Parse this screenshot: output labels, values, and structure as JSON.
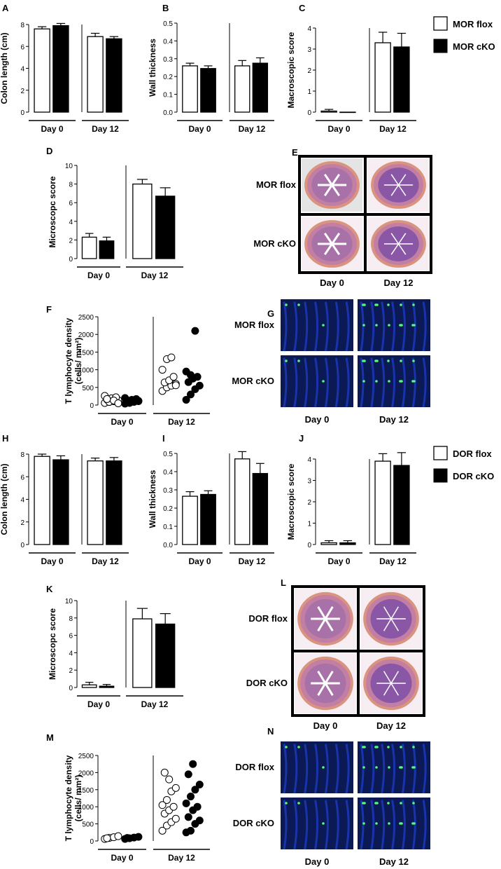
{
  "legend_mor": {
    "flox": "MOR flox",
    "cko": "MOR cKO"
  },
  "legend_dor": {
    "flox": "DOR flox",
    "cko": "DOR cKO"
  },
  "histo_E": {
    "letter": "E",
    "rows": [
      "MOR flox",
      "MOR cKO"
    ],
    "cols": [
      "Day 0",
      "Day 12"
    ]
  },
  "fluor_G": {
    "letter": "G",
    "rows": [
      "MOR flox",
      "MOR cKO"
    ],
    "cols": [
      "Day 0",
      "Day 12"
    ]
  },
  "histo_L": {
    "letter": "L",
    "rows": [
      "DOR flox",
      "DOR cKO"
    ],
    "cols": [
      "Day 0",
      "Day 12"
    ]
  },
  "fluor_N": {
    "letter": "N",
    "rows": [
      "DOR flox",
      "DOR cKO"
    ],
    "cols": [
      "Day 0",
      "Day 12"
    ]
  },
  "colors": {
    "flox": "#ffffff",
    "cko": "#000000",
    "stroke": "#000000"
  },
  "chart_data": [
    {
      "panel": "A",
      "type": "bar",
      "ylabel": "Colon length (cm)",
      "ylim": [
        0,
        8
      ],
      "yticks": [
        0,
        2,
        4,
        6,
        8
      ],
      "groups": [
        "Day 0",
        "Day 12"
      ],
      "series": [
        {
          "name": "MOR flox",
          "values": [
            7.6,
            6.9
          ],
          "errors": [
            0.2,
            0.3
          ]
        },
        {
          "name": "MOR cKO",
          "values": [
            7.9,
            6.7
          ],
          "errors": [
            0.2,
            0.2
          ]
        }
      ]
    },
    {
      "panel": "B",
      "type": "bar",
      "ylabel": "Wall thickness",
      "ylim": [
        0,
        0.5
      ],
      "yticks": [
        "0.0",
        "0.1",
        "0.2",
        "0.3",
        "0.4",
        "0.5"
      ],
      "groups": [
        "Day 0",
        "Day 12"
      ],
      "series": [
        {
          "name": "MOR flox",
          "values": [
            0.26,
            0.26
          ],
          "errors": [
            0.015,
            0.03
          ]
        },
        {
          "name": "MOR cKO",
          "values": [
            0.245,
            0.275
          ],
          "errors": [
            0.015,
            0.03
          ]
        }
      ]
    },
    {
      "panel": "C",
      "type": "bar",
      "ylabel": "Macroscopic score",
      "ylim": [
        0,
        4
      ],
      "yticks": [
        0,
        1,
        2,
        3,
        4
      ],
      "groups": [
        "Day 0",
        "Day 12"
      ],
      "series": [
        {
          "name": "MOR flox",
          "values": [
            0.05,
            3.3
          ],
          "errors": [
            0.08,
            0.5
          ]
        },
        {
          "name": "MOR cKO",
          "values": [
            0.0,
            3.1
          ],
          "errors": [
            0.0,
            0.65
          ]
        }
      ]
    },
    {
      "panel": "D",
      "type": "bar",
      "ylabel": "Microscopc score",
      "ylim": [
        0,
        10
      ],
      "yticks": [
        0,
        2,
        4,
        6,
        8,
        10
      ],
      "groups": [
        "Day 0",
        "Day 12"
      ],
      "series": [
        {
          "name": "MOR flox",
          "values": [
            2.3,
            8.0
          ],
          "errors": [
            0.4,
            0.5
          ]
        },
        {
          "name": "MOR cKO",
          "values": [
            1.9,
            6.7
          ],
          "errors": [
            0.4,
            0.9
          ]
        }
      ]
    },
    {
      "panel": "F",
      "type": "scatter",
      "ylabel": "T lymphocyte density\n(cells/ mm²)",
      "ylim": [
        0,
        2500
      ],
      "yticks": [
        0,
        500,
        1000,
        1500,
        2000,
        2500
      ],
      "groups": [
        "Day 0",
        "Day 12"
      ],
      "series": [
        {
          "name": "MOR flox",
          "groups": [
            [
              60,
              90,
              110,
              140,
              160,
              190,
              220,
              260,
              90,
              130,
              50,
              170
            ],
            [
              400,
              500,
              550,
              600,
              640,
              700,
              800,
              1000,
              1300,
              1350,
              560
            ]
          ]
        },
        {
          "name": "MOR cKO",
          "groups": [
            [
              40,
              70,
              90,
              110,
              130,
              150,
              170,
              200,
              60,
              100,
              120
            ],
            [
              150,
              300,
              450,
              550,
              650,
              750,
              800,
              950,
              850,
              2100
            ]
          ]
        }
      ]
    },
    {
      "panel": "H",
      "type": "bar",
      "ylabel": "Colon length (cm)",
      "ylim": [
        0,
        8
      ],
      "yticks": [
        0,
        2,
        4,
        6,
        8
      ],
      "groups": [
        "Day 0",
        "Day 12"
      ],
      "series": [
        {
          "name": "DOR flox",
          "values": [
            7.8,
            7.4
          ],
          "errors": [
            0.2,
            0.25
          ]
        },
        {
          "name": "DOR cKO",
          "values": [
            7.5,
            7.4
          ],
          "errors": [
            0.35,
            0.3
          ]
        }
      ]
    },
    {
      "panel": "I",
      "type": "bar",
      "ylabel": "Wall thickness",
      "ylim": [
        0,
        0.5
      ],
      "yticks": [
        "0.0",
        "0.1",
        "0.2",
        "0.3",
        "0.4",
        "0.5"
      ],
      "groups": [
        "Day 0",
        "Day 12"
      ],
      "series": [
        {
          "name": "DOR flox",
          "values": [
            0.265,
            0.47
          ],
          "errors": [
            0.025,
            0.04
          ]
        },
        {
          "name": "DOR cKO",
          "values": [
            0.275,
            0.39
          ],
          "errors": [
            0.02,
            0.055
          ]
        }
      ]
    },
    {
      "panel": "J",
      "type": "bar",
      "ylabel": "Macroscopic score",
      "ylim": [
        0,
        4
      ],
      "yticks": [
        0,
        1,
        2,
        3,
        4
      ],
      "groups": [
        "Day 0",
        "Day 12"
      ],
      "series": [
        {
          "name": "DOR flox",
          "values": [
            0.08,
            3.9
          ],
          "errors": [
            0.1,
            0.35
          ]
        },
        {
          "name": "DOR cKO",
          "values": [
            0.08,
            3.7
          ],
          "errors": [
            0.1,
            0.6
          ]
        }
      ]
    },
    {
      "panel": "K",
      "type": "bar",
      "ylabel": "Microscopc score",
      "ylim": [
        0,
        10
      ],
      "yticks": [
        0,
        2,
        4,
        6,
        8,
        10
      ],
      "groups": [
        "Day 0",
        "Day 12"
      ],
      "series": [
        {
          "name": "DOR flox",
          "values": [
            0.3,
            7.9
          ],
          "errors": [
            0.3,
            1.2
          ]
        },
        {
          "name": "DOR cKO",
          "values": [
            0.15,
            7.3
          ],
          "errors": [
            0.2,
            1.2
          ]
        }
      ]
    },
    {
      "panel": "M",
      "type": "scatter",
      "ylabel": "T lymphocyte density\n(cells/ mm²)",
      "ylim": [
        0,
        2500
      ],
      "yticks": [
        0,
        500,
        1000,
        1500,
        2000,
        2500
      ],
      "groups": [
        "Day 0",
        "Day 12"
      ],
      "series": [
        {
          "name": "DOR flox",
          "groups": [
            [
              60,
              90,
              110,
              140,
              80
            ],
            [
              300,
              450,
              550,
              650,
              800,
              900,
              1000,
              1050,
              1200,
              1450,
              1550,
              2000,
              1800
            ]
          ]
        },
        {
          "name": "DOR cKO",
          "groups": [
            [
              60,
              80,
              100,
              120,
              90
            ],
            [
              250,
              300,
              500,
              600,
              700,
              900,
              1000,
              1100,
              1300,
              1500,
              1650,
              1950,
              2250
            ]
          ]
        }
      ]
    }
  ]
}
